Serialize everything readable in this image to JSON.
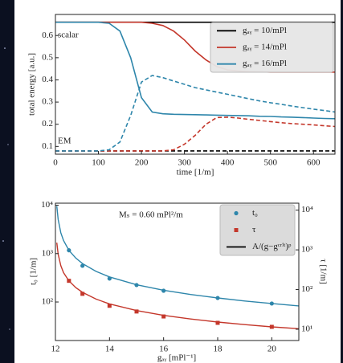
{
  "chart_data": [
    {
      "type": "line",
      "xlabel": "time [1/m]",
      "ylabel": "total energy [a.u.]",
      "x": [
        0,
        25,
        50,
        75,
        100,
        125,
        150,
        175,
        200,
        225,
        250,
        275,
        300,
        325,
        350,
        375,
        400,
        425,
        450,
        475,
        500,
        525,
        550,
        575,
        600,
        625,
        650
      ],
      "xlim": [
        0,
        650
      ],
      "xticks": [
        0,
        100,
        200,
        300,
        400,
        500,
        600
      ],
      "ylim": [
        0.065,
        0.695
      ],
      "yticks": [
        {
          "value": 0.1,
          "label": "0.1"
        },
        {
          "value": 0.2,
          "label": "0.2"
        },
        {
          "value": 0.3,
          "label": "0.3"
        },
        {
          "value": 0.4,
          "label": "0.4"
        },
        {
          "value": 0.5,
          "label": "0.5"
        },
        {
          "value": 0.6,
          "label": "0.6"
        }
      ],
      "legend": "upper right",
      "annotations": [
        {
          "text": "scalar",
          "color": "#2e86ab"
        },
        {
          "text": "EM",
          "color": "#2e86ab"
        }
      ],
      "series": [
        {
          "name": "gₐᵧ = 10/mPl",
          "color": "#000000",
          "style": "solid",
          "values": [
            0.66,
            0.66,
            0.66,
            0.66,
            0.66,
            0.66,
            0.66,
            0.66,
            0.66,
            0.66,
            0.66,
            0.66,
            0.66,
            0.66,
            0.66,
            0.66,
            0.66,
            0.66,
            0.66,
            0.66,
            0.66,
            0.66,
            0.66,
            0.66,
            0.66,
            0.66,
            0.66
          ]
        },
        {
          "color": "#000000",
          "style": "dashed",
          "values": [
            0.08,
            0.08,
            0.08,
            0.08,
            0.08,
            0.08,
            0.08,
            0.08,
            0.08,
            0.08,
            0.08,
            0.08,
            0.08,
            0.08,
            0.08,
            0.08,
            0.08,
            0.08,
            0.08,
            0.08,
            0.08,
            0.08,
            0.08,
            0.08,
            0.08,
            0.08,
            0.08
          ]
        },
        {
          "name": "gₐᵧ = 14/mPl",
          "color": "#c4372b",
          "style": "solid",
          "values": [
            0.66,
            0.66,
            0.66,
            0.66,
            0.66,
            0.66,
            0.66,
            0.66,
            0.66,
            0.655,
            0.645,
            0.62,
            0.58,
            0.53,
            0.49,
            0.46,
            0.445,
            0.44,
            0.437,
            0.436,
            0.435,
            0.435,
            0.435,
            0.435,
            0.435,
            0.435,
            0.435
          ]
        },
        {
          "color": "#c4372b",
          "style": "dashed",
          "values": [
            0.08,
            0.08,
            0.08,
            0.08,
            0.08,
            0.08,
            0.08,
            0.08,
            0.08,
            0.08,
            0.08,
            0.085,
            0.11,
            0.15,
            0.2,
            0.23,
            0.232,
            0.228,
            0.222,
            0.217,
            0.212,
            0.207,
            0.203,
            0.2,
            0.197,
            0.193,
            0.19
          ]
        },
        {
          "name": "gₐᵧ = 16/mPl",
          "color": "#2e86ab",
          "style": "solid",
          "values": [
            0.66,
            0.66,
            0.66,
            0.66,
            0.66,
            0.655,
            0.62,
            0.5,
            0.32,
            0.255,
            0.247,
            0.245,
            0.244,
            0.243,
            0.242,
            0.241,
            0.24,
            0.239,
            0.238,
            0.236,
            0.235,
            0.233,
            0.232,
            0.23,
            0.228,
            0.226,
            0.225
          ]
        },
        {
          "color": "#2e86ab",
          "style": "dashed",
          "values": [
            0.08,
            0.08,
            0.08,
            0.08,
            0.08,
            0.085,
            0.12,
            0.24,
            0.39,
            0.42,
            0.41,
            0.395,
            0.38,
            0.365,
            0.355,
            0.345,
            0.335,
            0.325,
            0.315,
            0.305,
            0.297,
            0.29,
            0.282,
            0.275,
            0.268,
            0.262,
            0.255
          ]
        }
      ]
    },
    {
      "type": "scatter",
      "xlabel": "gₐᵧ [mPl⁻¹]",
      "ylabel": "t₀ [1/m]",
      "y2label": "τ [1/m]",
      "xlim": [
        12,
        21
      ],
      "xticks": [
        12,
        14,
        16,
        18,
        20
      ],
      "log_y": true,
      "ylim": [
        16,
        11000
      ],
      "yticks": [
        {
          "value": 100,
          "label": "10²"
        },
        {
          "value": 1000,
          "label": "10³"
        },
        {
          "value": 10000,
          "label": "10⁴"
        }
      ],
      "y2lim": [
        5.2,
        15000
      ],
      "y2ticks": [
        {
          "value": 10,
          "label": "10¹"
        },
        {
          "value": 100,
          "label": "10²"
        },
        {
          "value": 1000,
          "label": "10³"
        },
        {
          "value": 10000,
          "label": "10⁴"
        }
      ],
      "legend": "upper right",
      "annotations": [
        {
          "text": "Mₛ = 0.60 mPl²/m",
          "color": "#222222"
        }
      ],
      "series": [
        {
          "name": "t₀",
          "color": "#2e86ab",
          "marker": "circle",
          "x": [
            12.5,
            13,
            14,
            15,
            16,
            18,
            20
          ],
          "values": [
            1170,
            560,
            305,
            224,
            171,
            121,
            93
          ]
        },
        {
          "name": "τ",
          "color": "#c4372b",
          "marker": "square",
          "axis": "y2",
          "x": [
            12.5,
            13,
            14,
            15,
            16,
            18,
            20
          ],
          "values": [
            166,
            78,
            39,
            28,
            21,
            14.5,
            11.5
          ]
        }
      ],
      "fit": {
        "name": "A/(g−gᶜʳⁱᵗ)ᵖ",
        "color": "#000000",
        "x": [
          12.05,
          12.1,
          12.2,
          12.3,
          12.5,
          12.75,
          13,
          13.5,
          14,
          15,
          16,
          17,
          18,
          19,
          20,
          21
        ],
        "series": [
          {
            "color": "#2e86ab",
            "values": [
              9600,
              5090,
              2700,
              1865,
              1170,
              808,
              621,
              429,
              330,
              227,
              175,
              143,
              121,
              105,
              93,
              83
            ]
          },
          {
            "color": "#c4372b",
            "axis": "y2",
            "values": [
              1517,
              779,
              400,
              267,
              166,
              112,
              85,
              57.5,
              43.6,
              29.5,
              22.4,
              18.1,
              15.2,
              13.1,
              11.5,
              10.3
            ]
          }
        ]
      }
    }
  ]
}
